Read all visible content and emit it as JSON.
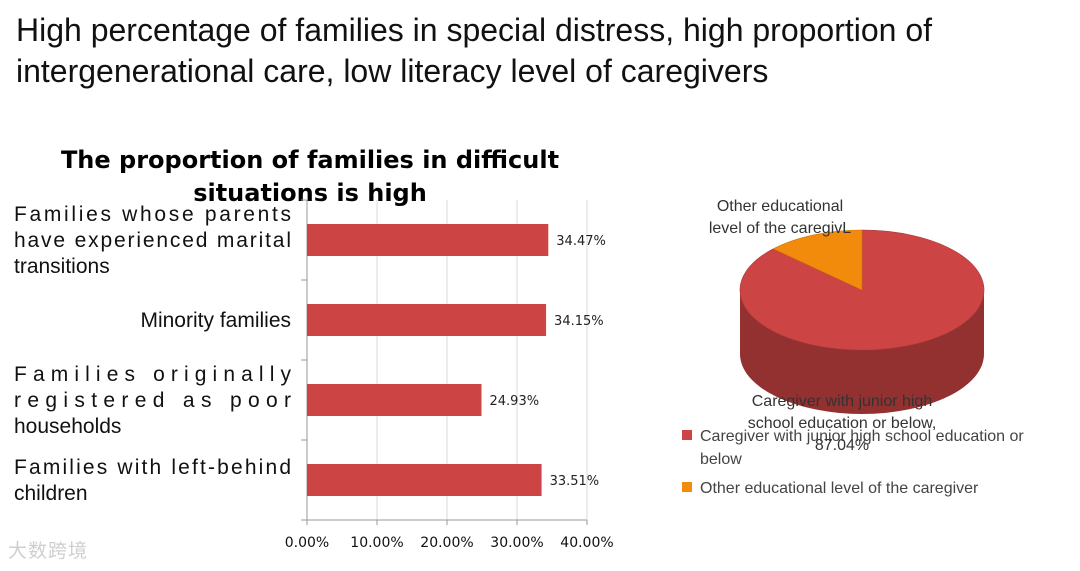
{
  "slide": {
    "title": "High percentage of families in special distress, high proportion of intergenerational care, low literacy level of caregivers"
  },
  "chart_data": [
    {
      "type": "bar",
      "orientation": "horizontal",
      "title_lines": [
        "The proportion of families in difficult",
        "situations is high"
      ],
      "categories": [
        {
          "lines": [
            "Families whose parents",
            "have experienced marital",
            "transitions"
          ],
          "value": 34.47,
          "label": "34.47%"
        },
        {
          "lines": [
            "Minority families"
          ],
          "value": 34.15,
          "label": "34.15%"
        },
        {
          "lines": [
            "Families originally",
            "registered as poor",
            "households"
          ],
          "value": 24.93,
          "label": "24.93%"
        },
        {
          "lines": [
            "Families with left-behind",
            "children"
          ],
          "value": 33.51,
          "label": "33.51%"
        }
      ],
      "xlim": [
        0,
        40
      ],
      "ticks": [
        "0.00%",
        "10.00%",
        "20.00%",
        "30.00%",
        "40.00%"
      ],
      "bar_color": "#cc4444",
      "grid": "vertical"
    },
    {
      "type": "pie",
      "style": "3d",
      "slices": [
        {
          "name": "Caregiver with junior high school education or below",
          "value": 87.04,
          "color": "#cc4444",
          "label_lines": [
            "Caregiver with junior high",
            "school education or below,",
            "87.04%"
          ]
        },
        {
          "name": "Other educational level of the caregiver",
          "value": 12.96,
          "color": "#f28a0c",
          "label_lines": [
            "Other educational",
            "level of the caregivL"
          ]
        }
      ],
      "legend": [
        {
          "lines": [
            "Caregiver with junior high school education or",
            "below"
          ],
          "color": "#cc4444"
        },
        {
          "lines": [
            "Other educational level of the caregiver"
          ],
          "color": "#f28a0c"
        }
      ],
      "legend_position": "bottom-right"
    }
  ],
  "watermark": "大数跨境"
}
